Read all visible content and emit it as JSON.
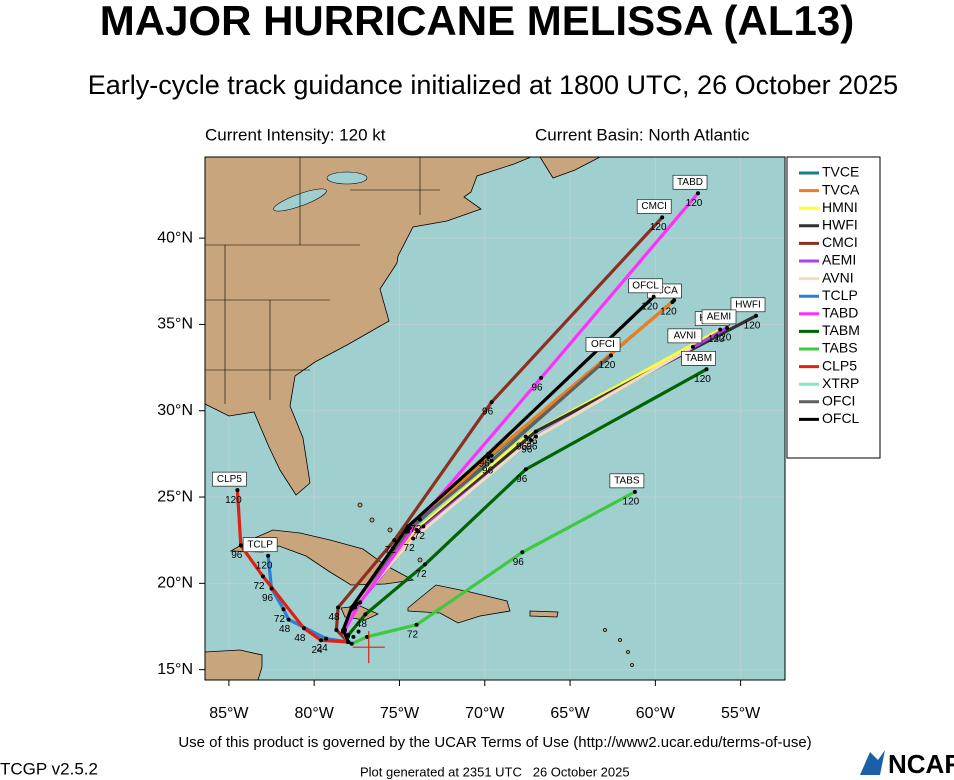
{
  "chart_data": {
    "type": "track-map",
    "title": "MAJOR HURRICANE MELISSA (AL13)",
    "subtitle": "Early-cycle track guidance initialized at 1800 UTC, 26 October 2025",
    "annotations": [
      "Current Intensity: 120 kt",
      "Current Basin: North Atlantic"
    ],
    "footer": [
      "Use of this product is governed by the UCAR Terms of Use (http://www2.ucar.edu/terms-of-use)",
      "TCGP v2.5.2",
      "Plot generated at 2351 UTC   26 October 2025",
      "NCAR"
    ],
    "xlim": [
      -86.4,
      -52.4
    ],
    "ylim": [
      14.4,
      44.7
    ],
    "xticks": [
      {
        "value": -85,
        "label": "85°W"
      },
      {
        "value": -80,
        "label": "80°W"
      },
      {
        "value": -75,
        "label": "75°W"
      },
      {
        "value": -70,
        "label": "70°W"
      },
      {
        "value": -65,
        "label": "65°W"
      },
      {
        "value": -60,
        "label": "60°W"
      },
      {
        "value": -55,
        "label": "55°W"
      }
    ],
    "yticks": [
      {
        "value": 15,
        "label": "15°N"
      },
      {
        "value": 20,
        "label": "20°N"
      },
      {
        "value": 25,
        "label": "25°N"
      },
      {
        "value": 30,
        "label": "30°N"
      },
      {
        "value": 35,
        "label": "35°N"
      },
      {
        "value": 40,
        "label": "40°N"
      }
    ],
    "grid": true,
    "legend": "right",
    "current_position": {
      "x": -76.8,
      "y": 16.3
    },
    "series": [
      {
        "name": "TVCE",
        "color": "#1a7f8a",
        "tag": false,
        "x": [
          -78.0,
          -78.2,
          -77.8,
          -74.5,
          -69.6,
          -58.9
        ],
        "values": [
          16.6,
          17.3,
          18.6,
          23.0,
          27.4,
          36.4
        ],
        "point_labels": [
          null,
          null,
          null,
          null,
          null,
          null
        ]
      },
      {
        "name": "TVCA",
        "color": "#f07c20",
        "tag": true,
        "x": [
          -78.0,
          -78.2,
          -77.8,
          -74.6,
          -69.8,
          -59.0
        ],
        "values": [
          16.6,
          17.3,
          18.6,
          23.0,
          27.3,
          36.3
        ],
        "point_labels": [
          null,
          null,
          null,
          null,
          null,
          "120"
        ]
      },
      {
        "name": "HMNI",
        "color": "#ffff30",
        "tag": true,
        "x": [
          -78.0,
          -78.3,
          -77.5,
          -74.0,
          -67.6,
          -56.2
        ],
        "values": [
          16.6,
          17.2,
          18.8,
          23.1,
          28.5,
          34.7
        ],
        "point_labels": [
          null,
          null,
          null,
          null,
          "96",
          "120"
        ]
      },
      {
        "name": "HWFI",
        "color": "#303030",
        "tag": true,
        "x": [
          -78.0,
          -78.3,
          -77.6,
          -73.6,
          -67.0,
          -54.1
        ],
        "values": [
          16.6,
          17.2,
          18.7,
          23.3,
          28.8,
          35.5
        ],
        "point_labels": [
          null,
          null,
          null,
          "72",
          "96",
          "120"
        ]
      },
      {
        "name": "CMCI",
        "color": "#8b3020",
        "tag": true,
        "x": [
          -78.0,
          -78.7,
          -78.6,
          -75.3,
          -69.6,
          -59.6
        ],
        "values": [
          16.6,
          17.3,
          18.6,
          22.5,
          30.5,
          41.2
        ],
        "point_labels": [
          null,
          null,
          "48",
          "72",
          "96",
          "120"
        ]
      },
      {
        "name": "AEMI",
        "color": "#b040e8",
        "tag": true,
        "x": [
          -78.0,
          -78.3,
          -77.6,
          -73.9,
          -67.0,
          -55.8
        ],
        "values": [
          16.6,
          17.2,
          18.6,
          23.0,
          28.5,
          34.8
        ],
        "point_labels": [
          null,
          null,
          null,
          null,
          "96",
          "120"
        ]
      },
      {
        "name": "AVNI",
        "color": "#f2dcc0",
        "tag": true,
        "x": [
          -78.0,
          -78.3,
          -77.8,
          -74.2,
          -67.3,
          -57.8
        ],
        "values": [
          16.6,
          17.2,
          18.5,
          22.6,
          28.3,
          33.7
        ],
        "point_labels": [
          null,
          null,
          null,
          "72",
          "96",
          "120"
        ]
      },
      {
        "name": "TCLP",
        "color": "#2a7fd8",
        "tag": true,
        "x": [
          -78.0,
          -79.3,
          -81.5,
          -81.8,
          -82.5,
          -82.7
        ],
        "values": [
          16.6,
          16.8,
          17.9,
          18.5,
          19.7,
          21.6
        ],
        "point_labels": [
          null,
          "24",
          "48",
          "72",
          "96",
          "120"
        ]
      },
      {
        "name": "TABD",
        "color": "#ff30ff",
        "tag": true,
        "x": [
          -78.0,
          -78.2,
          -77.3,
          -73.8,
          -66.7,
          -57.5
        ],
        "values": [
          16.6,
          17.3,
          18.9,
          23.7,
          31.9,
          42.6
        ],
        "point_labels": [
          null,
          null,
          null,
          "72",
          "96",
          "120"
        ]
      },
      {
        "name": "TABM",
        "color": "#006400",
        "tag": true,
        "x": [
          -78.0,
          -78.0,
          -77.0,
          -73.5,
          -67.6,
          -57.0
        ],
        "values": [
          16.6,
          17.0,
          18.2,
          21.1,
          26.6,
          32.4
        ],
        "point_labels": [
          null,
          null,
          "48",
          "72",
          "96",
          "120"
        ]
      },
      {
        "name": "TABS",
        "color": "#40c840",
        "tag": true,
        "x": [
          -78.0,
          -77.8,
          -76.9,
          -74.0,
          -67.8,
          -61.2
        ],
        "values": [
          16.6,
          16.5,
          16.9,
          17.6,
          21.8,
          25.3
        ],
        "point_labels": [
          null,
          null,
          null,
          "72",
          "96",
          "120"
        ]
      },
      {
        "name": "CLP5",
        "color": "#e02010",
        "tag": true,
        "x": [
          -78.0,
          -79.6,
          -80.6,
          -83.0,
          -84.3,
          -84.5
        ],
        "values": [
          16.6,
          16.7,
          17.4,
          20.4,
          22.2,
          25.4
        ],
        "point_labels": [
          null,
          "24",
          "48",
          "72",
          "96",
          "120"
        ]
      },
      {
        "name": "XTRP",
        "color": "#80e8c8",
        "tag": false,
        "x": [
          -78.0,
          -77.7,
          -77.4
        ],
        "values": [
          16.6,
          16.9,
          17.2
        ],
        "point_labels": [
          null,
          null,
          null
        ]
      },
      {
        "name": "OFCI",
        "color": "#606060",
        "tag": true,
        "x": [
          -78.0,
          -78.3,
          -77.8,
          -74.4,
          -69.6,
          -62.6
        ],
        "values": [
          16.6,
          17.3,
          18.6,
          23.2,
          27.1,
          33.2
        ],
        "point_labels": [
          null,
          null,
          null,
          null,
          "96",
          "120"
        ]
      },
      {
        "name": "OFCL",
        "color": "#000000",
        "tag": true,
        "x": [
          -78.0,
          -78.3,
          -77.8,
          -74.5,
          -69.8,
          -60.1
        ],
        "values": [
          16.6,
          17.3,
          18.6,
          23.3,
          27.5,
          36.6
        ],
        "point_labels": [
          null,
          null,
          null,
          null,
          "96",
          "120"
        ]
      }
    ]
  }
}
